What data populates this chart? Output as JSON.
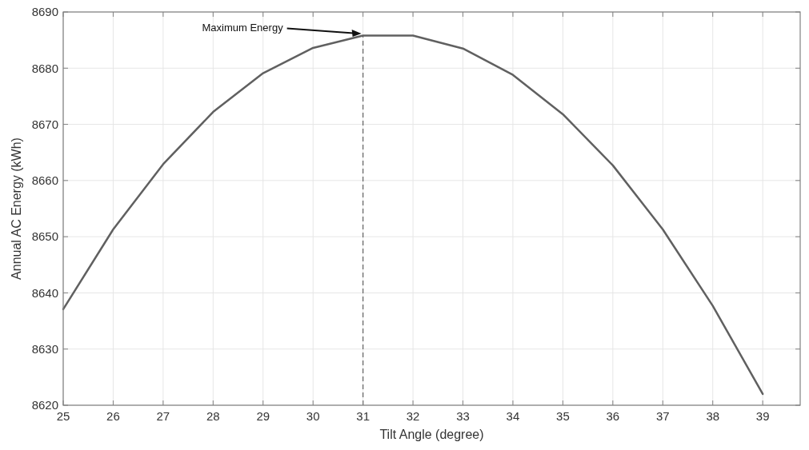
{
  "chart_data": {
    "type": "line",
    "xlabel": "Tilt Angle (degree)",
    "ylabel": "Annual AC Energy (kWh)",
    "x": [
      25,
      26,
      27,
      28,
      29,
      30,
      31,
      32,
      33,
      34,
      35,
      36,
      37,
      38,
      39
    ],
    "series": [
      {
        "color": "#606060",
        "values": [
          8637.1,
          8651.3,
          8662.9,
          8672.2,
          8679.1,
          8683.6,
          8685.8,
          8685.8,
          8683.5,
          8678.8,
          8671.8,
          8662.7,
          8651.3,
          8637.7,
          8622.0
        ]
      }
    ],
    "xlim": [
      25,
      39.75
    ],
    "xticks": [
      25,
      26,
      27,
      28,
      29,
      30,
      31,
      32,
      33,
      34,
      35,
      36,
      37,
      38,
      39
    ],
    "ylim": [
      8620,
      8690
    ],
    "yticks": [
      8620,
      8630,
      8640,
      8650,
      8660,
      8670,
      8680,
      8690
    ],
    "grid": true,
    "marker": "none",
    "line_style": "solid",
    "ref_lines": [
      {
        "axis": "x",
        "value": 31,
        "color": "#606060",
        "line_style": "dashed"
      }
    ],
    "annotations": [
      "Maximum Energy"
    ]
  }
}
